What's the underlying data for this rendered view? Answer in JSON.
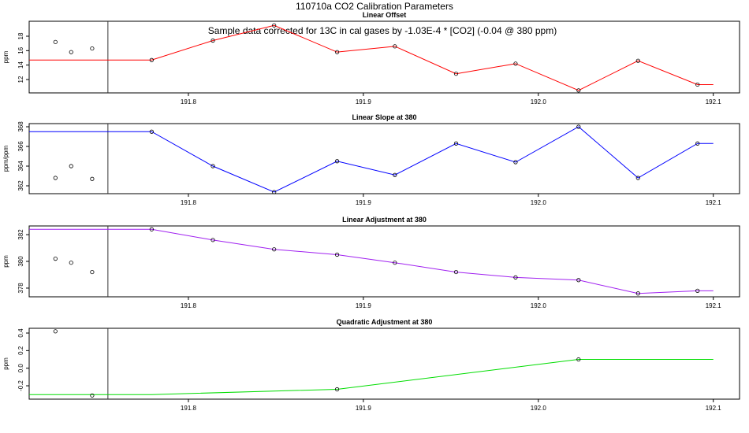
{
  "title": "110710a   CO2 Calibration Parameters",
  "chart_data": [
    {
      "type": "line",
      "title": "Linear Offset",
      "subtitle": "Sample data corrected for 13C in cal gases by -1.03E-4 * [CO2] (-0.04 @ 380 ppm)",
      "ylabel": "ppm",
      "xlim": [
        191.709,
        192.115
      ],
      "xticks": [
        191.8,
        191.9,
        {
          "value": 192,
          "label": "192.0"
        },
        192.1
      ],
      "ylim": [
        10.15,
        20.07
      ],
      "yticks": [
        12,
        14,
        16,
        18
      ],
      "vline": 191.754,
      "line": {
        "color": "#ff0000",
        "x": [
          191.709,
          191.779,
          191.814,
          191.849,
          191.885,
          191.918,
          191.953,
          191.987,
          192.023,
          192.057,
          192.091,
          192.1
        ],
        "values": [
          14.7,
          14.7,
          17.4,
          19.5,
          15.8,
          16.6,
          12.8,
          14.2,
          10.5,
          14.6,
          11.3,
          11.3
        ]
      },
      "points": {
        "x": [
          191.779,
          191.814,
          191.849,
          191.885,
          191.918,
          191.953,
          191.987,
          192.023,
          192.057,
          192.091
        ],
        "values": [
          14.7,
          17.4,
          19.5,
          15.8,
          16.6,
          12.8,
          14.2,
          10.5,
          14.6,
          11.3
        ]
      },
      "outliers": {
        "x": [
          191.724,
          191.733,
          191.745
        ],
        "values": [
          17.2,
          15.8,
          16.3
        ]
      }
    },
    {
      "type": "line",
      "title": "Linear Slope at 380",
      "ylabel": "ppm/ppm",
      "xlim": [
        191.709,
        192.115
      ],
      "xticks": [
        191.8,
        191.9,
        {
          "value": 192,
          "label": "192.0"
        },
        192.1
      ],
      "ylim": [
        361.2,
        368.32
      ],
      "yticks": [
        362,
        364,
        366,
        368
      ],
      "vline": 191.754,
      "line": {
        "color": "#0000ff",
        "x": [
          191.709,
          191.779,
          191.814,
          191.849,
          191.885,
          191.918,
          191.953,
          191.987,
          192.023,
          192.057,
          192.091,
          192.1
        ],
        "values": [
          367.5,
          367.5,
          364.0,
          361.36,
          364.5,
          363.1,
          366.3,
          364.4,
          368.0,
          362.8,
          366.3,
          366.3
        ]
      },
      "points": {
        "x": [
          191.779,
          191.814,
          191.849,
          191.885,
          191.918,
          191.953,
          191.987,
          192.023,
          192.057,
          192.091
        ],
        "values": [
          367.5,
          364.0,
          361.36,
          364.5,
          363.1,
          366.3,
          364.4,
          368.0,
          362.8,
          366.3
        ]
      },
      "outliers": {
        "x": [
          191.724,
          191.733,
          191.745
        ],
        "values": [
          362.8,
          364.0,
          362.7
        ]
      }
    },
    {
      "type": "line",
      "title": "Linear Adjustment at 380",
      "ylabel": "ppm",
      "xlim": [
        191.709,
        192.115
      ],
      "xticks": [
        191.8,
        191.9,
        {
          "value": 192,
          "label": "192.0"
        },
        192.1
      ],
      "ylim": [
        377.35,
        382.65
      ],
      "yticks": [
        378,
        380,
        382
      ],
      "vline": 191.754,
      "line": {
        "color": "#a020f0",
        "x": [
          191.709,
          191.779,
          191.814,
          191.849,
          191.885,
          191.918,
          191.953,
          191.987,
          192.023,
          192.057,
          192.091,
          192.1
        ],
        "values": [
          382.4,
          382.4,
          381.6,
          380.9,
          380.5,
          379.9,
          379.2,
          378.8,
          378.6,
          377.6,
          377.8,
          377.8
        ]
      },
      "points": {
        "x": [
          191.779,
          191.814,
          191.849,
          191.885,
          191.918,
          191.953,
          191.987,
          192.023,
          192.057,
          192.091
        ],
        "values": [
          382.4,
          381.6,
          380.9,
          380.5,
          379.9,
          379.2,
          378.8,
          378.6,
          377.6,
          377.8
        ]
      },
      "outliers": {
        "x": [
          191.724,
          191.733,
          191.745
        ],
        "values": [
          380.2,
          379.9,
          379.2
        ]
      }
    },
    {
      "type": "line",
      "title": "Quadratic Adjustment at 380",
      "ylabel": "ppm",
      "xlim": [
        191.709,
        192.115
      ],
      "xticks": [
        191.8,
        191.9,
        {
          "value": 192,
          "label": "192.0"
        },
        192.1
      ],
      "ylim": [
        -0.352,
        0.454
      ],
      "yticks": [
        -0.2,
        {
          "value": 0,
          "label": "0.0"
        },
        0.2,
        0.4
      ],
      "vline": 191.754,
      "line": {
        "color": "#00dd00",
        "x": [
          191.709,
          191.779,
          191.885,
          192.023,
          192.1
        ],
        "values": [
          -0.3,
          -0.3,
          -0.24,
          0.1,
          0.1
        ]
      },
      "points": {
        "x": [
          191.885,
          192.023
        ],
        "values": [
          -0.24,
          0.1
        ]
      },
      "outliers": {
        "x": [
          191.724,
          191.745
        ],
        "values": [
          0.42,
          -0.31
        ]
      }
    }
  ]
}
